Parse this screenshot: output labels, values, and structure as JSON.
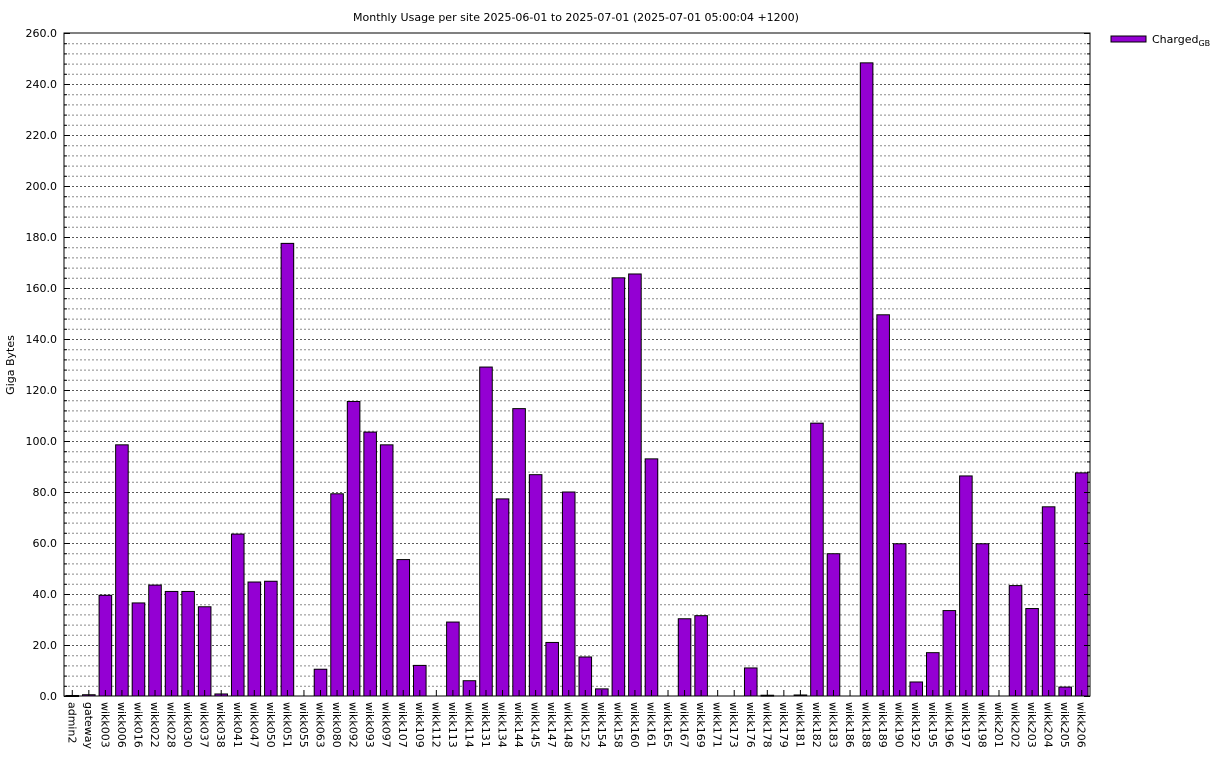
{
  "chart_data": {
    "type": "bar",
    "title": "Monthly Usage per site 2025-06-01 to 2025-07-01 (2025-07-01 05:00:04 +1200)",
    "xlabel": "",
    "ylabel": "Giga Bytes",
    "ylim": [
      0,
      260
    ],
    "y_major_step": 20,
    "y_minor_step": 4,
    "grid": true,
    "legend_position": "top-right",
    "bar_color": "#9400d3",
    "series": [
      {
        "name": "Charged",
        "name_subscript": "GB",
        "values": [
          0.2,
          0.5,
          39.5,
          98.5,
          36.5,
          43.5,
          41,
          41,
          35,
          0.8,
          63.5,
          44.7,
          45,
          177.5,
          0,
          10.5,
          79.3,
          115.5,
          103.5,
          98.5,
          53.5,
          12,
          0,
          29,
          6,
          129,
          77.3,
          112.7,
          86.8,
          21,
          80,
          15.3,
          2.8,
          164,
          165.5,
          93,
          0,
          30.3,
          31.5,
          0,
          0,
          11,
          0.3,
          0,
          0.4,
          107,
          55.8,
          0,
          248.3,
          149.5,
          59.7,
          5.5,
          17,
          33.5,
          86.3,
          59.7,
          0,
          43.3,
          34.3,
          74.2,
          3.5,
          87.5
        ]
      }
    ],
    "categories": [
      "admin2",
      "gateway",
      "wikk003",
      "wikk006",
      "wikk016",
      "wikk022",
      "wikk028",
      "wikk030",
      "wikk037",
      "wikk038",
      "wikk041",
      "wikk047",
      "wikk050",
      "wikk051",
      "wikk055",
      "wikk063",
      "wikk080",
      "wikk092",
      "wikk093",
      "wikk097",
      "wikk107",
      "wikk109",
      "wikk112",
      "wikk113",
      "wikk114",
      "wikk131",
      "wikk134",
      "wikk144",
      "wikk145",
      "wikk147",
      "wikk148",
      "wikk152",
      "wikk154",
      "wikk158",
      "wikk160",
      "wikk161",
      "wikk165",
      "wikk167",
      "wikk169",
      "wikk171",
      "wikk173",
      "wikk176",
      "wikk178",
      "wikk179",
      "wikk181",
      "wikk182",
      "wikk183",
      "wikk186",
      "wikk188",
      "wikk189",
      "wikk190",
      "wikk192",
      "wikk195",
      "wikk196",
      "wikk197",
      "wikk198",
      "wikk201",
      "wikk202",
      "wikk203",
      "wikk204",
      "wikk205",
      "wikk206"
    ]
  }
}
